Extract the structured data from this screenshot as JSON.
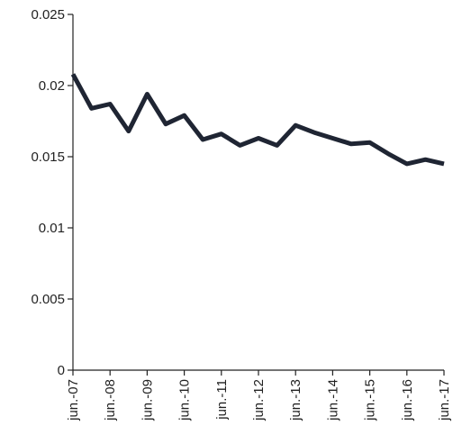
{
  "chart_data": {
    "type": "line",
    "title": "",
    "xlabel": "",
    "ylabel": "",
    "ylim": [
      0,
      0.025
    ],
    "yticks": [
      0,
      0.005,
      0.01,
      0.015,
      0.02,
      0.025
    ],
    "ytick_labels": [
      "0",
      "0.005",
      "0.01",
      "0.015",
      "0.02",
      "0.025"
    ],
    "xtick_labels": [
      "jun.-07",
      "jun.-08",
      "jun.-09",
      "jun.-10",
      "jun.-11",
      "jun.-12",
      "jun.-13",
      "jun.-14",
      "jun.-15",
      "jun.-16",
      "jun.-17"
    ],
    "x": [
      "2007-06",
      "2007-12",
      "2008-06",
      "2008-12",
      "2009-06",
      "2009-12",
      "2010-06",
      "2010-12",
      "2011-06",
      "2011-12",
      "2012-06",
      "2012-12",
      "2013-06",
      "2013-12",
      "2014-06",
      "2014-12",
      "2015-06",
      "2015-12",
      "2016-06",
      "2016-12",
      "2017-06"
    ],
    "series": [
      {
        "color": "#1f2533",
        "values": [
          0.0208,
          0.0184,
          0.0187,
          0.0168,
          0.0194,
          0.0173,
          0.0179,
          0.0162,
          0.0166,
          0.0158,
          0.0163,
          0.0158,
          0.0172,
          0.0167,
          0.0163,
          0.0159,
          0.016,
          0.0152,
          0.0145,
          0.0148,
          0.0145
        ]
      }
    ],
    "grid": false,
    "legend": "none"
  }
}
